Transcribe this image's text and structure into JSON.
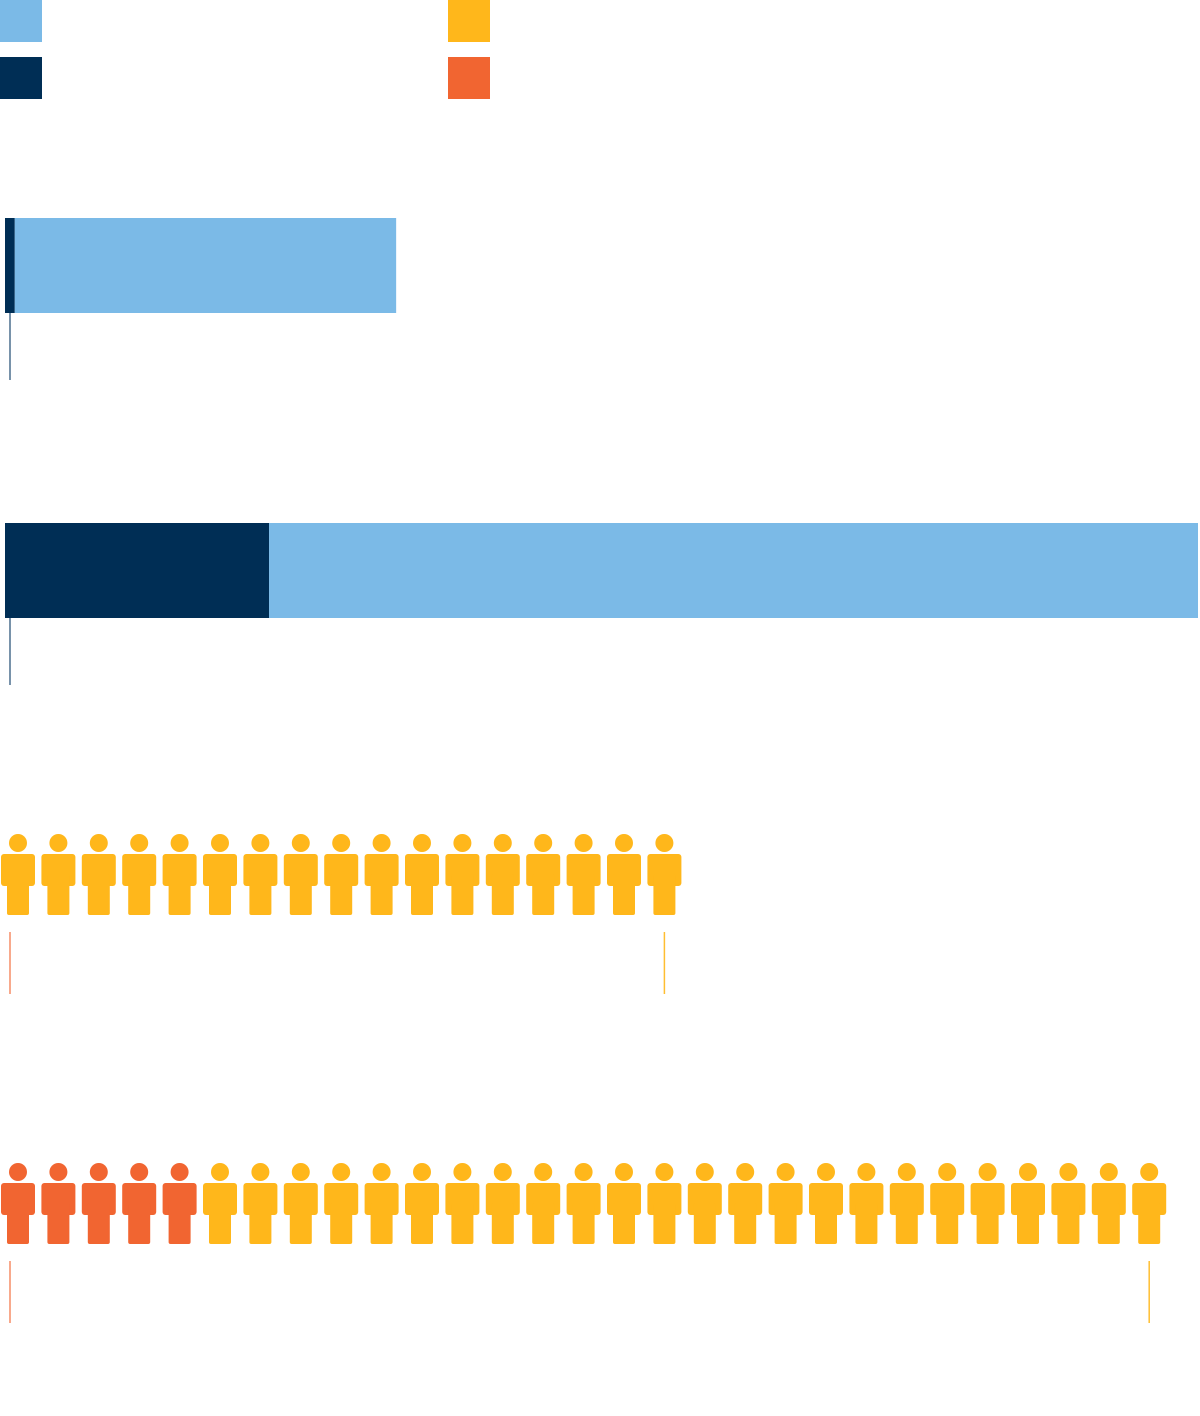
{
  "legend": {
    "items": [
      {
        "label": "",
        "color": "#7BBAE7"
      },
      {
        "label": "",
        "color": "#002E55"
      },
      {
        "label": "",
        "color": "#FFB71B"
      },
      {
        "label": "",
        "color": "#F16531"
      }
    ]
  },
  "chart_data": [
    {
      "type": "bar",
      "orientation": "horizontal",
      "stacked": true,
      "grid": false,
      "categories": [
        ""
      ],
      "series": [
        {
          "color": "#002E55",
          "values": [
            1
          ]
        },
        {
          "color": "#7BBAE7",
          "values": [
            39
          ]
        }
      ],
      "xlim": [
        0,
        122
      ]
    },
    {
      "type": "bar",
      "orientation": "horizontal",
      "stacked": true,
      "grid": false,
      "categories": [
        ""
      ],
      "series": [
        {
          "color": "#002E55",
          "values": [
            27
          ]
        },
        {
          "color": "#7BBAE7",
          "values": [
            95
          ]
        }
      ],
      "xlim": [
        0,
        122
      ]
    },
    {
      "type": "pictogram",
      "icon": "person-icon",
      "series": [
        {
          "color": "#F16531",
          "values": [
            0
          ]
        },
        {
          "color": "#FFB71B",
          "values": [
            17
          ]
        }
      ]
    },
    {
      "type": "pictogram",
      "icon": "person-icon",
      "series": [
        {
          "color": "#F16531",
          "values": [
            5
          ]
        },
        {
          "color": "#FFB71B",
          "values": [
            24
          ]
        }
      ]
    }
  ]
}
